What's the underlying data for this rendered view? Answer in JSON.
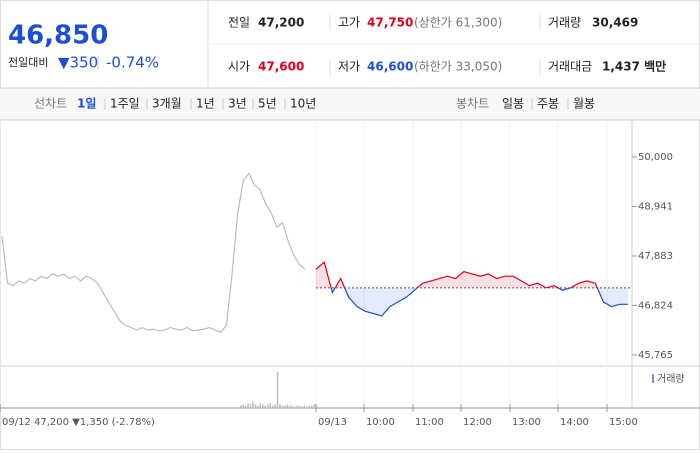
{
  "header": {
    "price": "46,850",
    "change_label": "전일대비",
    "change": "▼350",
    "change_pct": "-0.74%",
    "stats": [
      {
        "label": "전일",
        "value": "47,200"
      },
      {
        "label": "고가",
        "value": "47,750",
        "note": "(상한가 61,300)"
      },
      {
        "label": "거래량",
        "value": "30,469"
      },
      {
        "label": "시가",
        "value": "47,600"
      },
      {
        "label": "저가",
        "value": "46,600",
        "note": "(하한가 33,050)"
      },
      {
        "label": "거래대금",
        "value": "1,437 백만"
      }
    ]
  },
  "tabs": {
    "line_label": "선차트",
    "line_items": [
      "1일",
      "1주일",
      "3개월",
      "1년",
      "3년",
      "5년",
      "10년"
    ],
    "candle_label": "봉차트",
    "candle_items": [
      "일봉",
      "주봉",
      "월봉"
    ]
  },
  "chart_data": {
    "type": "line",
    "series": [
      {
        "name": "09/12",
        "color": "#bbbbbb",
        "values": [
          48300,
          47300,
          47250,
          47350,
          47300,
          47400,
          47350,
          47450,
          47400,
          47500,
          47450,
          47500,
          47400,
          47450,
          47350,
          47450,
          47400,
          47300,
          47100,
          46900,
          46700,
          46500,
          46400,
          46350,
          46300,
          46350,
          46300,
          46320,
          46280,
          46300,
          46350,
          46320,
          46300,
          46350,
          46280,
          46300,
          46320,
          46350,
          46300,
          46250,
          46400,
          47500,
          48800,
          49500,
          49650,
          49400,
          49300,
          49000,
          48800,
          48500,
          48600,
          48200,
          47900,
          47700,
          47600
        ]
      },
      {
        "name": "09/13",
        "color": "#e0001b",
        "color_below": "#1f4fd0",
        "values": [
          47600,
          47750,
          47100,
          47400,
          47000,
          46800,
          46700,
          46650,
          46600,
          46800,
          46900,
          47000,
          47150,
          47300,
          47350,
          47400,
          47450,
          47400,
          47550,
          47500,
          47450,
          47500,
          47400,
          47450,
          47450,
          47350,
          47250,
          47300,
          47200,
          47250,
          47150,
          47200,
          47300,
          47350,
          47300,
          46900,
          46800,
          46850,
          46850
        ]
      }
    ],
    "reference_line": 47200,
    "ylim": [
      45765,
      50000
    ],
    "yticks": [
      {
        "value": 50000,
        "label": "50,000"
      },
      {
        "value": 48941,
        "label": "48,941"
      },
      {
        "value": 47883,
        "label": "47,883"
      },
      {
        "value": 46824,
        "label": "46,824"
      },
      {
        "value": 45765,
        "label": "45,765"
      }
    ],
    "xtick_labels": [
      "09/12",
      "09/13",
      "10:00",
      "11:00",
      "12:00",
      "13:00",
      "14:00",
      "15:00"
    ],
    "summary": "47,200 ▼1,350 (-2.78%)",
    "volume_legend": "거래량",
    "volume": [
      2,
      3,
      2,
      4,
      3,
      5,
      3,
      2,
      4,
      3,
      2,
      3,
      4,
      2,
      3,
      30,
      3,
      2,
      2,
      3,
      2,
      2,
      1,
      2,
      2,
      1,
      2,
      1,
      2,
      2,
      3,
      2
    ]
  }
}
